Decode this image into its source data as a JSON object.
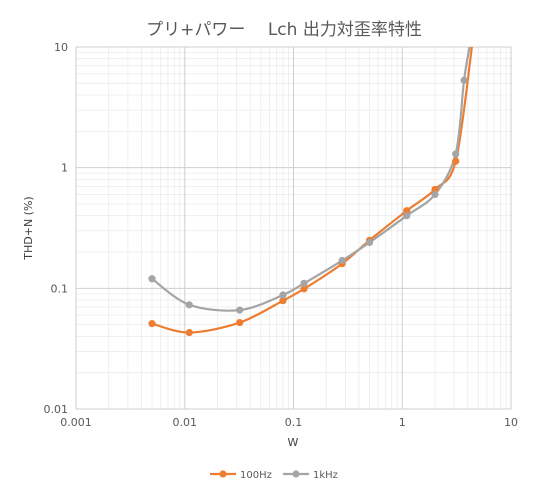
{
  "chart_data": {
    "type": "line",
    "title": "プリ+パワー　 Lch 出力対歪率特性",
    "xlabel": "W",
    "ylabel": "THD+N (%)",
    "xscale": "log",
    "yscale": "log",
    "xlim": [
      0.001,
      10
    ],
    "ylim": [
      0.01,
      10
    ],
    "xticks": [
      "0.001",
      "0.01",
      "0.1",
      "1",
      "10"
    ],
    "yticks": [
      "0.01",
      "0.1",
      "1",
      "10"
    ],
    "grid": true,
    "legend_position": "bottom",
    "series": [
      {
        "name": "100Hz",
        "color": "#ED7D31",
        "points": [
          [
            0.005,
            0.051
          ],
          [
            0.011,
            0.043
          ],
          [
            0.032,
            0.052
          ],
          [
            0.08,
            0.079
          ],
          [
            0.125,
            0.099
          ],
          [
            0.28,
            0.16
          ],
          [
            0.5,
            0.25
          ],
          [
            1.1,
            0.44
          ],
          [
            2.0,
            0.66
          ],
          [
            3.1,
            1.13
          ],
          [
            4.4,
            10.5
          ]
        ]
      },
      {
        "name": "1kHz",
        "color": "#A5A5A5",
        "points": [
          [
            0.005,
            0.12
          ],
          [
            0.011,
            0.073
          ],
          [
            0.032,
            0.066
          ],
          [
            0.08,
            0.088
          ],
          [
            0.125,
            0.11
          ],
          [
            0.28,
            0.17
          ],
          [
            0.5,
            0.24
          ],
          [
            1.1,
            0.4
          ],
          [
            2.0,
            0.6
          ],
          [
            3.1,
            1.3
          ],
          [
            3.7,
            5.3
          ],
          [
            4.2,
            10.5
          ]
        ]
      }
    ]
  }
}
